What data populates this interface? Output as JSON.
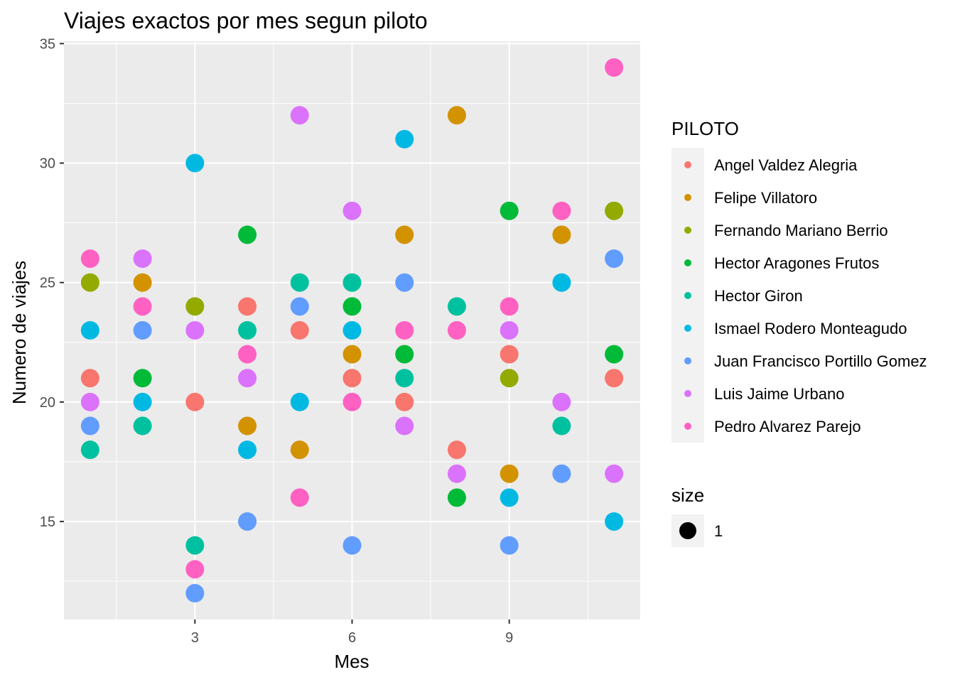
{
  "chart_data": {
    "type": "scatter",
    "title": "Viajes exactos por mes segun piloto",
    "xlabel": "Mes",
    "ylabel": "Numero de viajes",
    "xlim": [
      0.5,
      11.5
    ],
    "ylim": [
      10.9,
      35.1
    ],
    "x_ticks": [
      3,
      6,
      9
    ],
    "y_ticks": [
      15,
      20,
      25,
      30,
      35
    ],
    "grid": true,
    "legend_title": "PILOTO",
    "legend_position": "right",
    "size_legend": {
      "title": "size",
      "label": "1"
    },
    "series": [
      {
        "name": "Angel Valdez Alegria",
        "color": "#F8766D",
        "points": [
          [
            1,
            21
          ],
          [
            3,
            20
          ],
          [
            4,
            24
          ],
          [
            5,
            23
          ],
          [
            6,
            21
          ],
          [
            7,
            20
          ],
          [
            8,
            18
          ],
          [
            9,
            22
          ],
          [
            11,
            21
          ]
        ]
      },
      {
        "name": "Felipe Villatoro",
        "color": "#D39200",
        "points": [
          [
            2,
            25
          ],
          [
            4,
            19
          ],
          [
            5,
            18
          ],
          [
            6,
            22
          ],
          [
            7,
            27
          ],
          [
            8,
            32
          ],
          [
            9,
            17
          ],
          [
            10,
            27
          ]
        ]
      },
      {
        "name": "Fernando Mariano Berrio",
        "color": "#93AA00",
        "points": [
          [
            1,
            25
          ],
          [
            3,
            24
          ],
          [
            9,
            21
          ],
          [
            11,
            28
          ]
        ]
      },
      {
        "name": "Hector Aragones Frutos",
        "color": "#00BA38",
        "points": [
          [
            2,
            21
          ],
          [
            4,
            27
          ],
          [
            6,
            24
          ],
          [
            7,
            22
          ],
          [
            8,
            16
          ],
          [
            9,
            28
          ],
          [
            11,
            22
          ]
        ]
      },
      {
        "name": "Hector Giron",
        "color": "#00C19F",
        "points": [
          [
            1,
            18
          ],
          [
            2,
            19
          ],
          [
            3,
            14
          ],
          [
            4,
            23
          ],
          [
            5,
            25
          ],
          [
            6,
            25
          ],
          [
            7,
            21
          ],
          [
            8,
            24
          ],
          [
            10,
            19
          ]
        ]
      },
      {
        "name": "Ismael Rodero Monteagudo",
        "color": "#00B9E3",
        "points": [
          [
            1,
            23
          ],
          [
            2,
            20
          ],
          [
            3,
            30
          ],
          [
            4,
            18
          ],
          [
            5,
            20
          ],
          [
            6,
            23
          ],
          [
            7,
            31
          ],
          [
            9,
            16
          ],
          [
            10,
            25
          ],
          [
            11,
            15
          ]
        ]
      },
      {
        "name": "Juan Francisco Portillo Gomez",
        "color": "#619CFF",
        "points": [
          [
            1,
            19
          ],
          [
            2,
            23
          ],
          [
            3,
            12
          ],
          [
            4,
            15
          ],
          [
            5,
            24
          ],
          [
            6,
            14
          ],
          [
            7,
            25
          ],
          [
            9,
            14
          ],
          [
            10,
            17
          ],
          [
            11,
            26
          ]
        ]
      },
      {
        "name": "Luis Jaime Urbano",
        "color": "#DB72FB",
        "points": [
          [
            1,
            20
          ],
          [
            2,
            26
          ],
          [
            3,
            23
          ],
          [
            4,
            21
          ],
          [
            5,
            32
          ],
          [
            6,
            28
          ],
          [
            7,
            19
          ],
          [
            8,
            17
          ],
          [
            9,
            23
          ],
          [
            10,
            20
          ],
          [
            11,
            17
          ]
        ]
      },
      {
        "name": "Pedro Alvarez Parejo",
        "color": "#FF61C3",
        "points": [
          [
            1,
            26
          ],
          [
            2,
            24
          ],
          [
            3,
            13
          ],
          [
            4,
            22
          ],
          [
            5,
            16
          ],
          [
            6,
            20
          ],
          [
            7,
            23
          ],
          [
            8,
            23
          ],
          [
            9,
            24
          ],
          [
            10,
            28
          ],
          [
            11,
            34
          ]
        ]
      }
    ]
  }
}
